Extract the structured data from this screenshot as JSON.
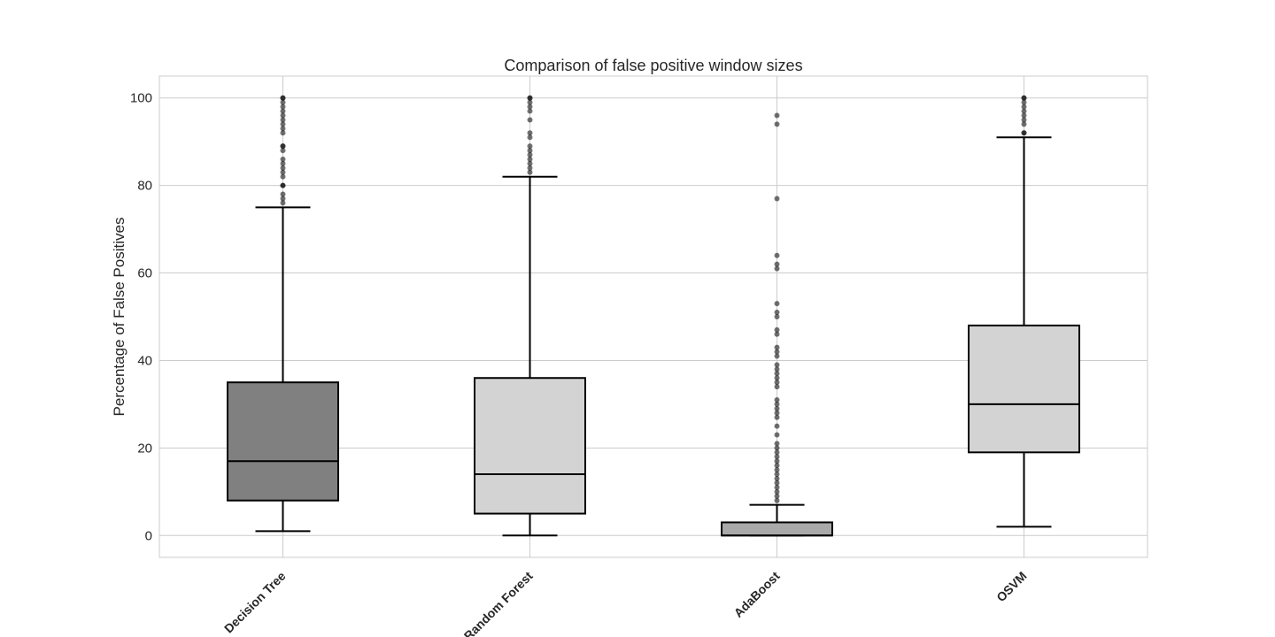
{
  "chart_data": {
    "type": "box",
    "title": "Comparison of false positive window sizes",
    "xlabel": "",
    "ylabel": "Percentage of False Positives",
    "ylim": [
      -5,
      105
    ],
    "yticks": [
      0,
      20,
      40,
      60,
      80,
      100
    ],
    "grid": true,
    "categories": [
      "Decision Tree",
      "Random Forest",
      "AdaBoost",
      "OSVM"
    ],
    "boxes": [
      {
        "name": "Decision Tree",
        "color": "#808080",
        "whisker_low": 1,
        "q1": 8,
        "median": 17,
        "q3": 35,
        "whisker_high": 75,
        "outliers": [
          76,
          77,
          78,
          80,
          80,
          82,
          83,
          84,
          85,
          86,
          88,
          89,
          89,
          92,
          93,
          94,
          95,
          96,
          97,
          98,
          99,
          100,
          100
        ]
      },
      {
        "name": "Random Forest",
        "color": "#d3d3d3",
        "whisker_low": 0,
        "q1": 5,
        "median": 14,
        "q3": 36,
        "whisker_high": 82,
        "outliers": [
          83,
          84,
          85,
          86,
          87,
          88,
          89,
          91,
          92,
          95,
          97,
          98,
          99,
          100,
          100
        ]
      },
      {
        "name": "AdaBoost",
        "color": "#a9a9a9",
        "whisker_low": 0,
        "q1": 0,
        "median": 0,
        "q3": 3,
        "whisker_high": 7,
        "outliers": [
          8,
          9,
          10,
          11,
          12,
          13,
          14,
          15,
          16,
          17,
          18,
          19,
          20,
          21,
          23,
          25,
          27,
          28,
          29,
          30,
          31,
          34,
          35,
          36,
          37,
          38,
          39,
          41,
          42,
          43,
          46,
          47,
          50,
          51,
          53,
          61,
          62,
          64,
          77,
          94,
          96
        ]
      },
      {
        "name": "OSVM",
        "color": "#d3d3d3",
        "whisker_low": 2,
        "q1": 19,
        "median": 30,
        "q3": 48,
        "whisker_high": 91,
        "outliers": [
          92,
          92,
          94,
          95,
          96,
          97,
          98,
          99,
          100,
          100
        ]
      }
    ]
  }
}
